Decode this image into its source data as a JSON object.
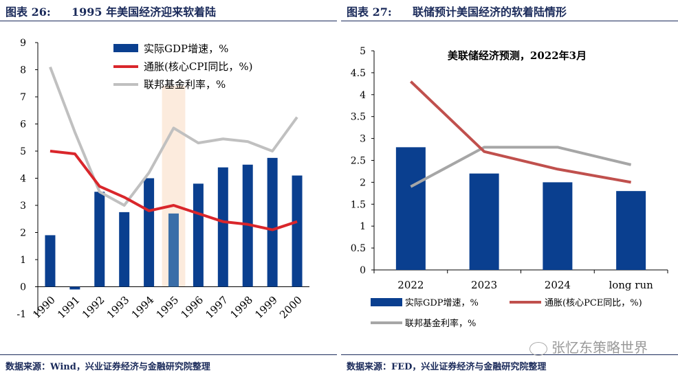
{
  "left_panel": {
    "label": "图表 26:",
    "title": "1995 年美国经济迎来软着陆",
    "source": "数据来源：Wind，兴业证券经济与金融研究院整理"
  },
  "right_panel": {
    "label": "图表 27:",
    "title": "联储预计美国经济的软着陆情形",
    "source": "数据来源：FED，兴业证券经济与金融研究院整理"
  },
  "watermark": "张忆东策略世界",
  "chart_data": [
    {
      "type": "bar",
      "title": "",
      "categories": [
        "1990",
        "1991",
        "1992",
        "1993",
        "1994",
        "1995",
        "1996",
        "1997",
        "1998",
        "1999",
        "2000"
      ],
      "ylim": [
        -1,
        9
      ],
      "yticks": [
        -1,
        0,
        1,
        2,
        3,
        4,
        5,
        6,
        7,
        8,
        9
      ],
      "legend_position": "top-right",
      "highlight_category": "1995",
      "series": [
        {
          "name": "实际GDP增速，%",
          "kind": "bar",
          "color": "#0a3f8f",
          "highlight_color": "#3a6ea8",
          "values": [
            1.9,
            -0.1,
            3.5,
            2.75,
            4.0,
            2.7,
            3.8,
            4.4,
            4.5,
            4.75,
            4.1
          ]
        },
        {
          "name": "通胀(核心CPI同比，%)",
          "kind": "line",
          "color": "#d9262b",
          "values": [
            5.0,
            4.9,
            3.7,
            3.3,
            2.8,
            3.0,
            2.7,
            2.4,
            2.3,
            2.1,
            2.4
          ]
        },
        {
          "name": "联邦基金利率，%",
          "kind": "line",
          "color": "#c0c0c0",
          "values": [
            8.1,
            5.7,
            3.5,
            3.0,
            4.2,
            5.85,
            5.3,
            5.45,
            5.35,
            5.0,
            6.25
          ]
        }
      ]
    },
    {
      "type": "bar",
      "title": "美联储经济预测，2022年3月",
      "categories": [
        "2022",
        "2023",
        "2024",
        "long run"
      ],
      "ylim": [
        0,
        5
      ],
      "yticks": [
        0,
        0.5,
        1,
        1.5,
        2,
        2.5,
        3,
        3.5,
        4,
        4.5,
        5
      ],
      "legend_position": "bottom",
      "series": [
        {
          "name": "实际GDP增速，%",
          "kind": "bar",
          "color": "#0a3f8f",
          "values": [
            2.8,
            2.2,
            2.0,
            1.8
          ]
        },
        {
          "name": "通胀(核心PCE同比，%)",
          "kind": "line",
          "color": "#c0504d",
          "values": [
            4.3,
            2.7,
            2.3,
            2.0
          ]
        },
        {
          "name": "联邦基金利率，%",
          "kind": "line",
          "color": "#a6a6a6",
          "values": [
            1.9,
            2.8,
            2.8,
            2.4
          ]
        }
      ]
    }
  ]
}
